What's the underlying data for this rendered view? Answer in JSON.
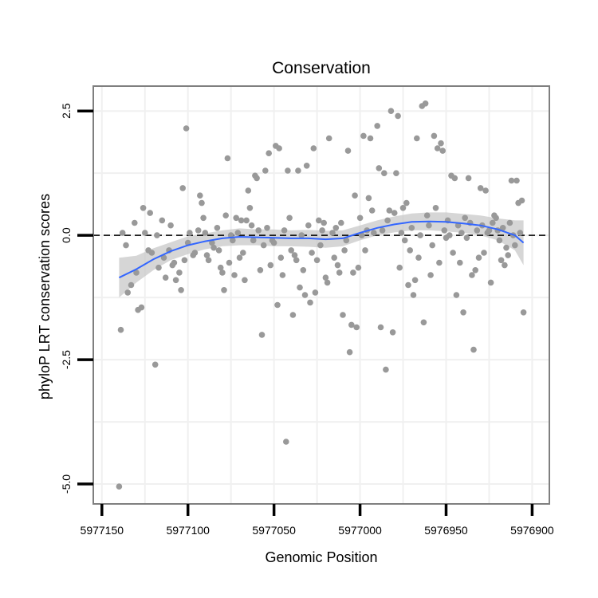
{
  "chart_data": {
    "type": "scatter",
    "title": "Conservation",
    "xlabel": "Genomic Position",
    "ylabel": "phyloP LRT conservation scores",
    "xlim": [
      5977155,
      5976890
    ],
    "ylim": [
      -5.4,
      3.0
    ],
    "x_reversed": true,
    "x_ticks": [
      5977150,
      5977100,
      5977050,
      5977000,
      5976950,
      5976900
    ],
    "x_tick_labels": [
      "5977150",
      "5977100",
      "5977050",
      "5977000",
      "5976950",
      "5976900"
    ],
    "y_ticks": [
      2.5,
      0.0,
      -2.5,
      -5.0
    ],
    "y_tick_labels": [
      "2.5",
      "0.0",
      "-2.5",
      "-5.0"
    ],
    "reference_line": 0.0,
    "colors": {
      "points": "#999999",
      "smooth": "#3366ff",
      "band": "#c8c8c8",
      "panel_border": "#7f7f7f",
      "grid": "#f0f0f0"
    },
    "points": [
      [
        5977140,
        -5.05
      ],
      [
        5977139,
        -1.9
      ],
      [
        5977138,
        0.05
      ],
      [
        5977136,
        -0.2
      ],
      [
        5977135,
        -1.15
      ],
      [
        5977133,
        -1.0
      ],
      [
        5977131,
        0.25
      ],
      [
        5977130,
        -0.75
      ],
      [
        5977129,
        -1.5
      ],
      [
        5977127,
        -1.45
      ],
      [
        5977126,
        0.55
      ],
      [
        5977125,
        0.05
      ],
      [
        5977123,
        -0.3
      ],
      [
        5977122,
        0.45
      ],
      [
        5977121,
        -0.35
      ],
      [
        5977119,
        -2.6
      ],
      [
        5977118,
        0.0
      ],
      [
        5977117,
        -0.65
      ],
      [
        5977115,
        0.3
      ],
      [
        5977114,
        -0.45
      ],
      [
        5977113,
        -0.85
      ],
      [
        5977111,
        -0.3
      ],
      [
        5977110,
        0.2
      ],
      [
        5977109,
        -0.6
      ],
      [
        5977108,
        -0.55
      ],
      [
        5977107,
        -0.9
      ],
      [
        5977105,
        -0.75
      ],
      [
        5977104,
        -1.1
      ],
      [
        5977103,
        0.95
      ],
      [
        5977102,
        -0.5
      ],
      [
        5977101,
        2.15
      ],
      [
        5977100,
        -0.15
      ],
      [
        5977099,
        0.05
      ],
      [
        5977097,
        -0.4
      ],
      [
        5977096,
        -0.35
      ],
      [
        5977094,
        0.1
      ],
      [
        5977093,
        0.8
      ],
      [
        5977092,
        0.65
      ],
      [
        5977091,
        0.35
      ],
      [
        5977090,
        0.05
      ],
      [
        5977089,
        -0.4
      ],
      [
        5977088,
        -0.5
      ],
      [
        5977086,
        -0.15
      ],
      [
        5977085,
        -0.25
      ],
      [
        5977083,
        0.15
      ],
      [
        5977082,
        -0.3
      ],
      [
        5977081,
        -0.65
      ],
      [
        5977080,
        -0.75
      ],
      [
        5977079,
        -1.1
      ],
      [
        5977078,
        0.4
      ],
      [
        5977077,
        1.55
      ],
      [
        5977076,
        -0.55
      ],
      [
        5977075,
        0.0
      ],
      [
        5977074,
        -0.1
      ],
      [
        5977073,
        -0.8
      ],
      [
        5977072,
        0.35
      ],
      [
        5977071,
        0.05
      ],
      [
        5977070,
        -0.45
      ],
      [
        5977069,
        0.3
      ],
      [
        5977068,
        -0.35
      ],
      [
        5977067,
        -0.9
      ],
      [
        5977066,
        0.3
      ],
      [
        5977065,
        0.9
      ],
      [
        5977064,
        0.55
      ],
      [
        5977063,
        0.2
      ],
      [
        5977062,
        -0.1
      ],
      [
        5977061,
        1.2
      ],
      [
        5977060,
        1.15
      ],
      [
        5977059,
        0.1
      ],
      [
        5977058,
        -0.7
      ],
      [
        5977057,
        -2.0
      ],
      [
        5977056,
        -0.2
      ],
      [
        5977055,
        1.3
      ],
      [
        5977054,
        0.15
      ],
      [
        5977053,
        1.65
      ],
      [
        5977052,
        -0.6
      ],
      [
        5977051,
        -0.1
      ],
      [
        5977050,
        -0.15
      ],
      [
        5977049,
        1.8
      ],
      [
        5977048,
        -1.4
      ],
      [
        5977047,
        1.75
      ],
      [
        5977046,
        -0.45
      ],
      [
        5977045,
        -0.8
      ],
      [
        5977044,
        0.1
      ],
      [
        5977043,
        -4.15
      ],
      [
        5977042,
        1.3
      ],
      [
        5977041,
        0.35
      ],
      [
        5977040,
        -0.3
      ],
      [
        5977039,
        -1.6
      ],
      [
        5977038,
        -0.4
      ],
      [
        5977037,
        -0.5
      ],
      [
        5977036,
        1.3
      ],
      [
        5977035,
        -1.05
      ],
      [
        5977034,
        0.0
      ],
      [
        5977033,
        -0.7
      ],
      [
        5977032,
        -1.2
      ],
      [
        5977031,
        1.4
      ],
      [
        5977030,
        0.2
      ],
      [
        5977029,
        -1.35
      ],
      [
        5977028,
        -0.35
      ],
      [
        5977027,
        1.75
      ],
      [
        5977026,
        -1.15
      ],
      [
        5977025,
        -0.5
      ],
      [
        5977024,
        0.3
      ],
      [
        5977023,
        -0.2
      ],
      [
        5977022,
        0.1
      ],
      [
        5977021,
        0.25
      ],
      [
        5977020,
        -0.85
      ],
      [
        5977019,
        -0.95
      ],
      [
        5977018,
        1.95
      ],
      [
        5977016,
        0.05
      ],
      [
        5977015,
        -0.45
      ],
      [
        5977014,
        0.15
      ],
      [
        5977013,
        -0.6
      ],
      [
        5977012,
        -0.75
      ],
      [
        5977011,
        0.25
      ],
      [
        5977010,
        -1.6
      ],
      [
        5977009,
        -0.3
      ],
      [
        5977008,
        -0.1
      ],
      [
        5977007,
        1.7
      ],
      [
        5977006,
        -2.35
      ],
      [
        5977005,
        -1.8
      ],
      [
        5977004,
        -0.75
      ],
      [
        5977003,
        0.8
      ],
      [
        5977002,
        -1.85
      ],
      [
        5977001,
        -0.65
      ],
      [
        5977000,
        0.35
      ],
      [
        5976999,
        0.0
      ],
      [
        5976998,
        2.0
      ],
      [
        5976997,
        -0.3
      ],
      [
        5976996,
        0.1
      ],
      [
        5976995,
        0.75
      ],
      [
        5976994,
        1.95
      ],
      [
        5976993,
        0.5
      ],
      [
        5976992,
        0.05
      ],
      [
        5976990,
        2.2
      ],
      [
        5976989,
        1.35
      ],
      [
        5976988,
        -1.85
      ],
      [
        5976987,
        0.1
      ],
      [
        5976986,
        1.25
      ],
      [
        5976985,
        -2.7
      ],
      [
        5976984,
        0.3
      ],
      [
        5976983,
        0.5
      ],
      [
        5976982,
        2.5
      ],
      [
        5976981,
        -1.95
      ],
      [
        5976980,
        0.45
      ],
      [
        5976979,
        1.25
      ],
      [
        5976978,
        2.4
      ],
      [
        5976977,
        -0.65
      ],
      [
        5976976,
        0.05
      ],
      [
        5976975,
        0.55
      ],
      [
        5976974,
        -0.1
      ],
      [
        5976973,
        0.65
      ],
      [
        5976972,
        -1.0
      ],
      [
        5976971,
        -0.3
      ],
      [
        5976970,
        0.15
      ],
      [
        5976969,
        -1.2
      ],
      [
        5976968,
        -0.9
      ],
      [
        5976967,
        1.95
      ],
      [
        5976966,
        -0.45
      ],
      [
        5976965,
        0.0
      ],
      [
        5976964,
        2.6
      ],
      [
        5976963,
        -1.75
      ],
      [
        5976962,
        2.65
      ],
      [
        5976961,
        0.4
      ],
      [
        5976960,
        0.2
      ],
      [
        5976959,
        -0.8
      ],
      [
        5976958,
        -0.2
      ],
      [
        5976957,
        2.0
      ],
      [
        5976956,
        0.55
      ],
      [
        5976955,
        1.75
      ],
      [
        5976954,
        -0.55
      ],
      [
        5976953,
        1.85
      ],
      [
        5976952,
        1.7
      ],
      [
        5976951,
        0.1
      ],
      [
        5976950,
        -0.05
      ],
      [
        5976949,
        0.3
      ],
      [
        5976948,
        0.0
      ],
      [
        5976947,
        1.2
      ],
      [
        5976946,
        -0.35
      ],
      [
        5976945,
        1.15
      ],
      [
        5976944,
        -1.2
      ],
      [
        5976943,
        0.2
      ],
      [
        5976942,
        -0.55
      ],
      [
        5976941,
        0.05
      ],
      [
        5976940,
        -1.55
      ],
      [
        5976939,
        0.35
      ],
      [
        5976938,
        -0.05
      ],
      [
        5976937,
        1.15
      ],
      [
        5976936,
        0.25
      ],
      [
        5976935,
        -0.8
      ],
      [
        5976934,
        -2.3
      ],
      [
        5976933,
        -0.7
      ],
      [
        5976932,
        0.1
      ],
      [
        5976931,
        -0.45
      ],
      [
        5976930,
        0.95
      ],
      [
        5976929,
        0.2
      ],
      [
        5976928,
        -0.35
      ],
      [
        5976927,
        0.9
      ],
      [
        5976926,
        0.05
      ],
      [
        5976925,
        0.1
      ],
      [
        5976924,
        -0.95
      ],
      [
        5976923,
        0.25
      ],
      [
        5976922,
        0.4
      ],
      [
        5976921,
        0.35
      ],
      [
        5976920,
        0.1
      ],
      [
        5976919,
        -0.1
      ],
      [
        5976918,
        -0.5
      ],
      [
        5976917,
        0.15
      ],
      [
        5976916,
        -0.6
      ],
      [
        5976915,
        -0.25
      ],
      [
        5976914,
        -0.4
      ],
      [
        5976913,
        0.25
      ],
      [
        5976912,
        1.1
      ],
      [
        5976911,
        0.0
      ],
      [
        5976910,
        -0.2
      ],
      [
        5976909,
        1.1
      ],
      [
        5976908,
        0.65
      ],
      [
        5976907,
        0.05
      ],
      [
        5976906,
        0.7
      ],
      [
        5976905,
        -1.55
      ]
    ],
    "smooth_line": [
      [
        5977140,
        -0.85
      ],
      [
        5977130,
        -0.68
      ],
      [
        5977120,
        -0.48
      ],
      [
        5977110,
        -0.32
      ],
      [
        5977100,
        -0.2
      ],
      [
        5977090,
        -0.12
      ],
      [
        5977080,
        -0.06
      ],
      [
        5977070,
        -0.03
      ],
      [
        5977060,
        -0.04
      ],
      [
        5977050,
        -0.05
      ],
      [
        5977040,
        -0.06
      ],
      [
        5977030,
        -0.06
      ],
      [
        5977020,
        -0.08
      ],
      [
        5977010,
        -0.06
      ],
      [
        5977000,
        0.05
      ],
      [
        5976990,
        0.15
      ],
      [
        5976980,
        0.22
      ],
      [
        5976970,
        0.27
      ],
      [
        5976960,
        0.28
      ],
      [
        5976950,
        0.27
      ],
      [
        5976940,
        0.24
      ],
      [
        5976930,
        0.2
      ],
      [
        5976920,
        0.12
      ],
      [
        5976910,
        0.0
      ],
      [
        5976905,
        -0.15
      ]
    ],
    "band_lower": [
      [
        5977140,
        -1.25
      ],
      [
        5977130,
        -0.95
      ],
      [
        5977120,
        -0.7
      ],
      [
        5977110,
        -0.5
      ],
      [
        5977100,
        -0.38
      ],
      [
        5977090,
        -0.28
      ],
      [
        5977080,
        -0.22
      ],
      [
        5977070,
        -0.2
      ],
      [
        5977060,
        -0.2
      ],
      [
        5977050,
        -0.22
      ],
      [
        5977040,
        -0.22
      ],
      [
        5977030,
        -0.23
      ],
      [
        5977020,
        -0.25
      ],
      [
        5977010,
        -0.22
      ],
      [
        5977000,
        -0.1
      ],
      [
        5976990,
        0.0
      ],
      [
        5976980,
        0.06
      ],
      [
        5976970,
        0.1
      ],
      [
        5976960,
        0.1
      ],
      [
        5976950,
        0.08
      ],
      [
        5976940,
        0.05
      ],
      [
        5976930,
        0.0
      ],
      [
        5976920,
        -0.1
      ],
      [
        5976910,
        -0.3
      ],
      [
        5976905,
        -0.6
      ]
    ],
    "band_upper": [
      [
        5977140,
        -0.45
      ],
      [
        5977130,
        -0.41
      ],
      [
        5977120,
        -0.26
      ],
      [
        5977110,
        -0.14
      ],
      [
        5977100,
        -0.02
      ],
      [
        5977090,
        0.04
      ],
      [
        5977080,
        0.1
      ],
      [
        5977070,
        0.14
      ],
      [
        5977060,
        0.12
      ],
      [
        5977050,
        0.12
      ],
      [
        5977040,
        0.1
      ],
      [
        5977030,
        0.11
      ],
      [
        5977020,
        0.09
      ],
      [
        5977010,
        0.1
      ],
      [
        5977000,
        0.2
      ],
      [
        5976990,
        0.3
      ],
      [
        5976980,
        0.38
      ],
      [
        5976970,
        0.44
      ],
      [
        5976960,
        0.46
      ],
      [
        5976950,
        0.46
      ],
      [
        5976940,
        0.43
      ],
      [
        5976930,
        0.4
      ],
      [
        5976920,
        0.34
      ],
      [
        5976910,
        0.3
      ],
      [
        5976905,
        0.3
      ]
    ]
  }
}
